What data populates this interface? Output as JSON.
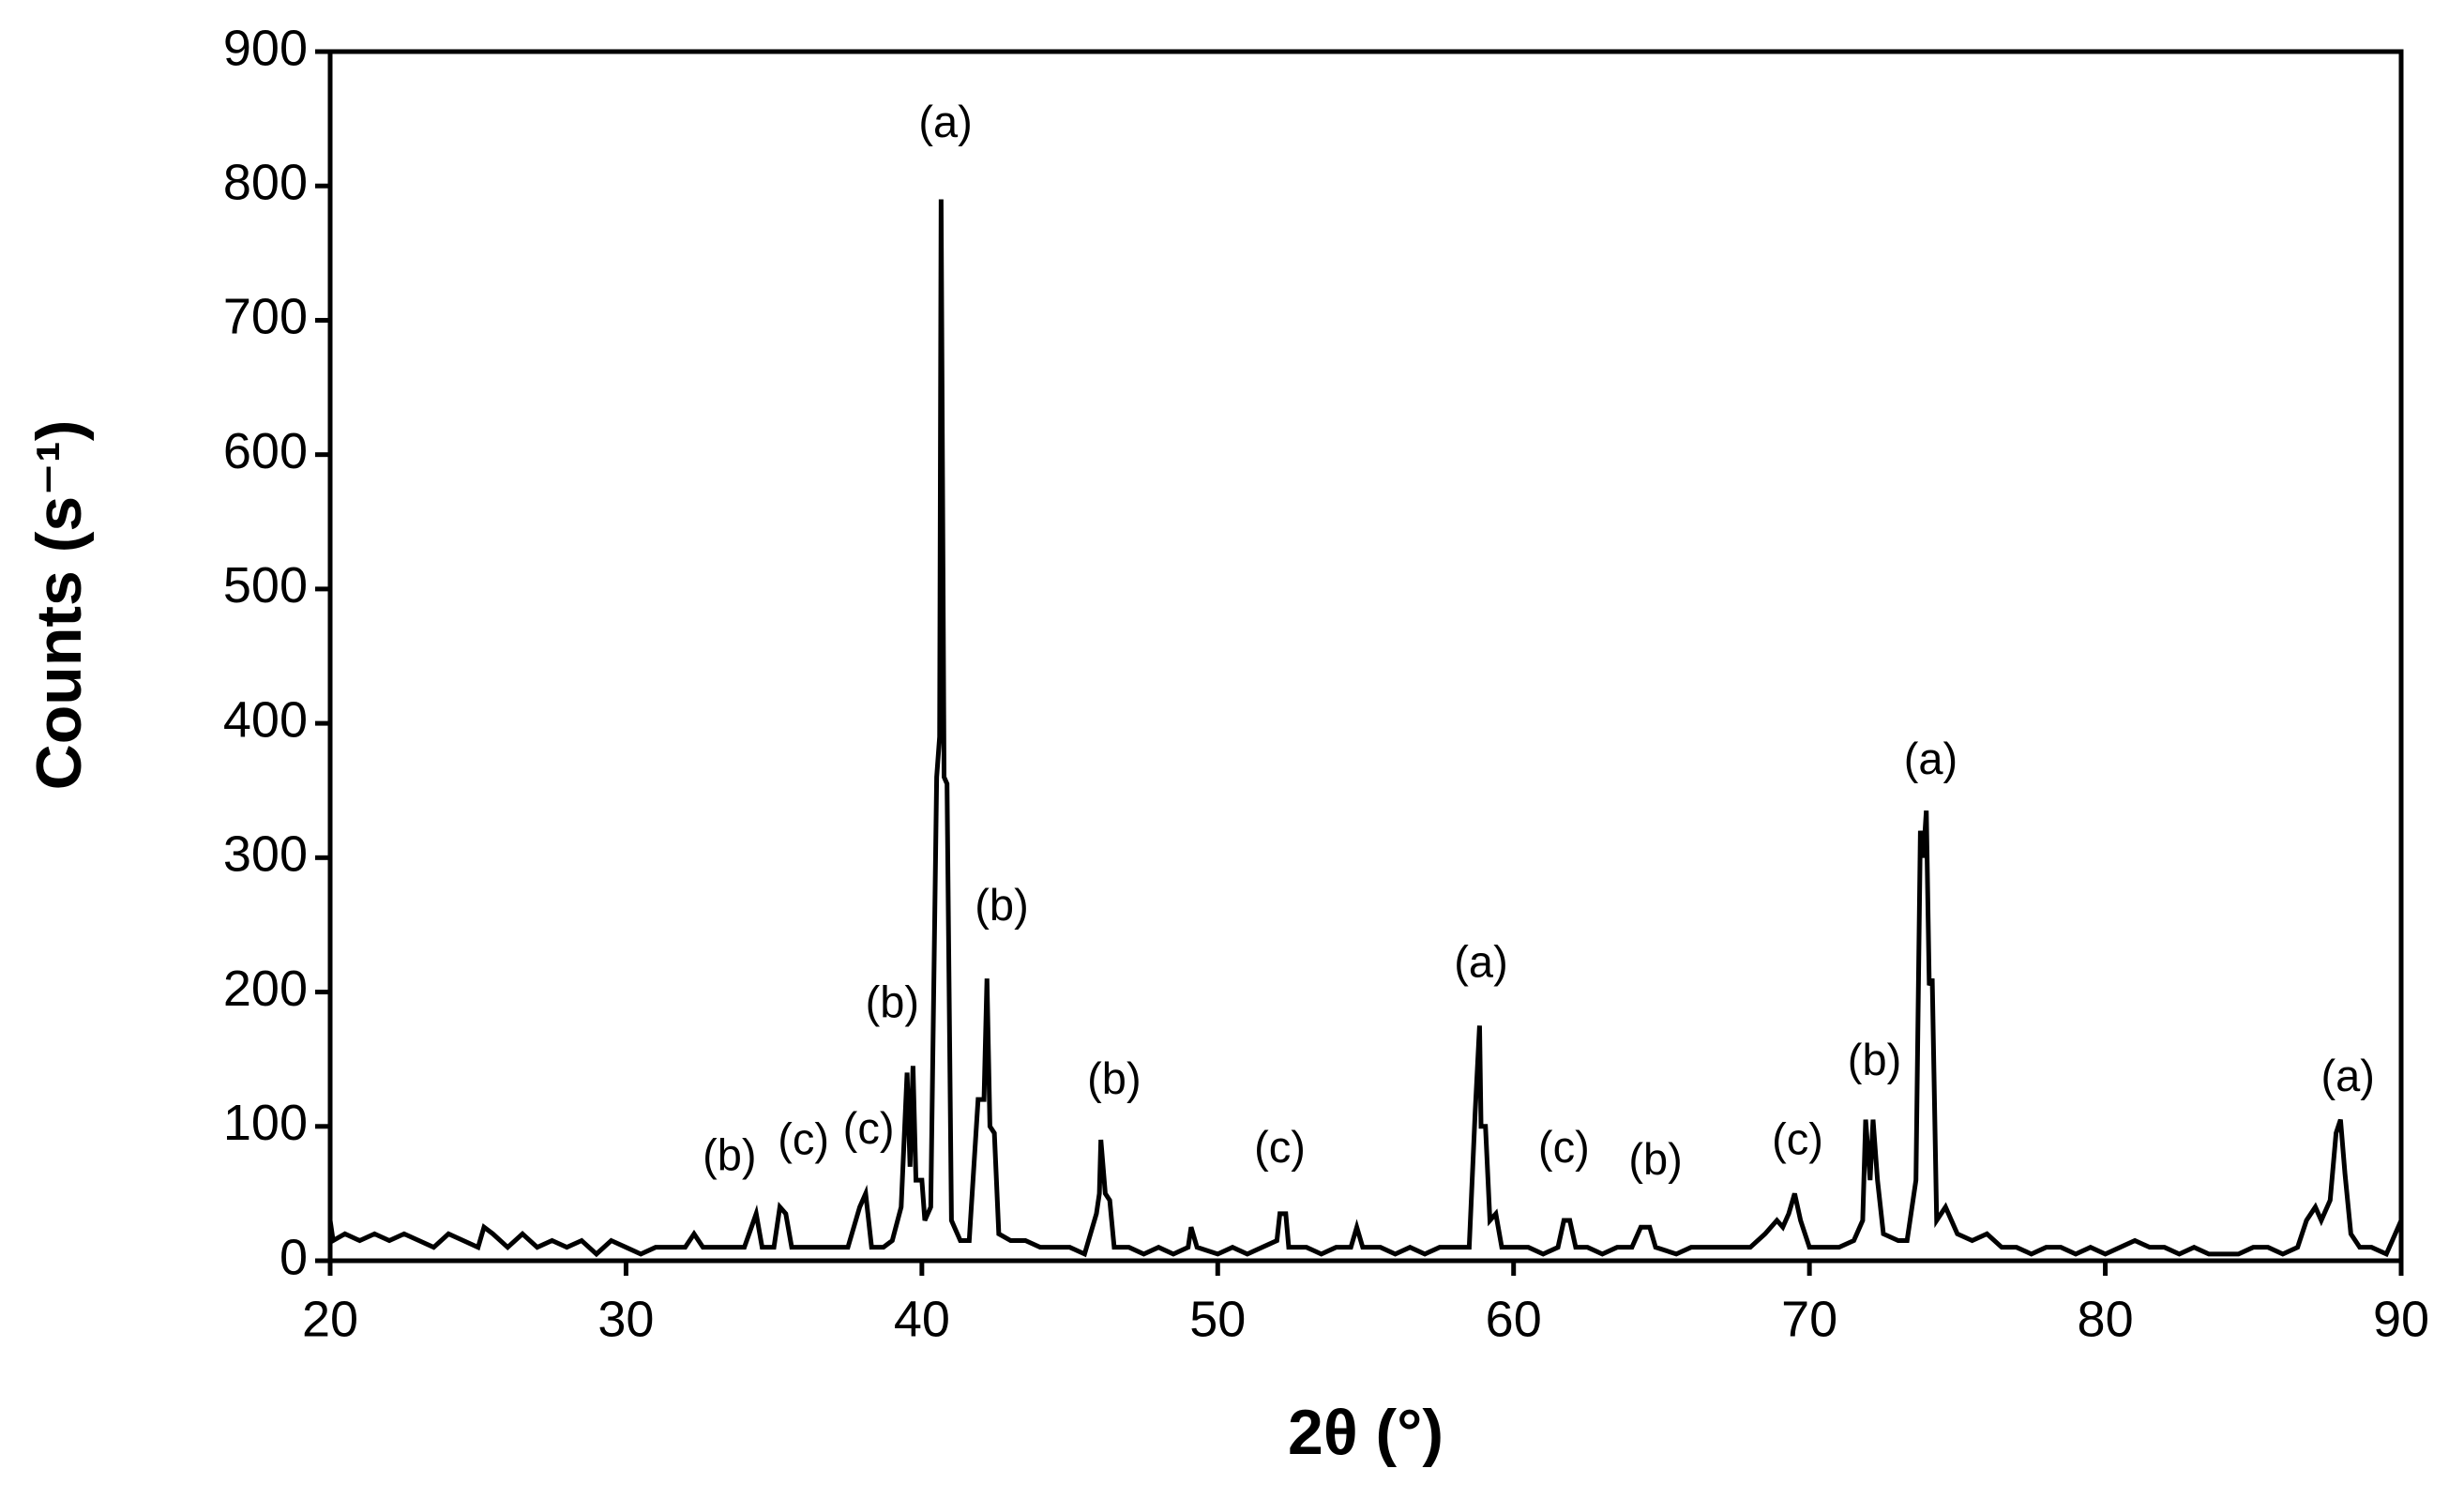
{
  "chart_data": {
    "type": "line",
    "xlabel": "2θ (°)",
    "ylabel": "Counts (s⁻¹)",
    "color": "#000000",
    "xlim": [
      20,
      90
    ],
    "ylim": [
      0,
      900
    ],
    "xticks": [
      20,
      30,
      40,
      50,
      60,
      70,
      80,
      90
    ],
    "yticks": [
      0,
      100,
      200,
      300,
      400,
      500,
      600,
      700,
      800,
      900
    ],
    "grid": false,
    "x": [
      20,
      20.1,
      20.5,
      21,
      21.5,
      22,
      22.5,
      23,
      23.5,
      24,
      24.5,
      25,
      25.2,
      25.5,
      26,
      26.5,
      27,
      27.5,
      28,
      28.5,
      29,
      29.5,
      30,
      30.5,
      31,
      31.5,
      32,
      32.3,
      32.6,
      33,
      33.5,
      34,
      34.4,
      34.6,
      35,
      35.2,
      35.4,
      35.6,
      36,
      36.5,
      37,
      37.5,
      37.9,
      38.1,
      38.3,
      38.7,
      39,
      39.3,
      39.5,
      39.6,
      39.7,
      39.8,
      40,
      40.1,
      40.3,
      40.5,
      40.6,
      40.65,
      40.75,
      40.85,
      41,
      41.3,
      41.6,
      41.9,
      42.1,
      42.2,
      42.3,
      42.45,
      42.6,
      43,
      43.5,
      44,
      44.5,
      45,
      45.5,
      45.9,
      46,
      46.05,
      46.2,
      46.35,
      46.5,
      47,
      47.5,
      48,
      48.5,
      49,
      49.1,
      49.3,
      50,
      50.5,
      51,
      51.5,
      52,
      52.1,
      52.3,
      52.4,
      53,
      53.5,
      54,
      54.5,
      54.7,
      54.9,
      55.5,
      56,
      56.5,
      57,
      57.5,
      58,
      58.5,
      58.7,
      58.85,
      58.9,
      59.05,
      59.2,
      59.4,
      59.6,
      60,
      60.5,
      61,
      61.5,
      61.7,
      61.9,
      62.1,
      62.5,
      63,
      63.5,
      64,
      64.3,
      64.6,
      64.8,
      65.5,
      66,
      66.5,
      67,
      67.5,
      68,
      68.5,
      68.9,
      69.1,
      69.3,
      69.5,
      69.7,
      70,
      70.5,
      71,
      71.5,
      71.8,
      71.9,
      72.05,
      72.15,
      72.3,
      72.5,
      73,
      73.3,
      73.6,
      73.75,
      73.85,
      73.95,
      74.05,
      74.15,
      74.3,
      74.6,
      75,
      75.5,
      76,
      76.5,
      77,
      77.5,
      78,
      78.5,
      79,
      79.5,
      80,
      80.5,
      81,
      81.5,
      82,
      82.5,
      83,
      83.5,
      84,
      84.5,
      85,
      85.5,
      86,
      86.5,
      86.8,
      87.1,
      87.3,
      87.6,
      87.8,
      87.95,
      88.1,
      88.3,
      88.6,
      89,
      89.5,
      89.8,
      90
    ],
    "values": [
      30,
      15,
      20,
      15,
      20,
      15,
      20,
      15,
      10,
      20,
      15,
      10,
      25,
      20,
      10,
      20,
      10,
      15,
      10,
      15,
      5,
      15,
      10,
      5,
      10,
      10,
      10,
      20,
      10,
      10,
      10,
      10,
      35,
      10,
      10,
      40,
      35,
      10,
      10,
      10,
      10,
      10,
      40,
      50,
      10,
      10,
      15,
      40,
      140,
      70,
      145,
      60,
      60,
      30,
      40,
      360,
      390,
      790,
      360,
      355,
      30,
      15,
      15,
      120,
      120,
      210,
      100,
      95,
      20,
      15,
      15,
      10,
      10,
      10,
      5,
      35,
      50,
      90,
      50,
      45,
      10,
      10,
      5,
      10,
      5,
      10,
      25,
      10,
      5,
      10,
      5,
      10,
      15,
      35,
      35,
      10,
      10,
      5,
      10,
      10,
      25,
      10,
      10,
      5,
      10,
      5,
      10,
      10,
      10,
      110,
      175,
      100,
      100,
      30,
      35,
      10,
      10,
      10,
      5,
      10,
      30,
      30,
      10,
      10,
      5,
      10,
      10,
      25,
      25,
      10,
      5,
      10,
      10,
      10,
      10,
      10,
      20,
      30,
      25,
      35,
      50,
      30,
      10,
      10,
      10,
      15,
      30,
      105,
      60,
      105,
      60,
      20,
      15,
      15,
      60,
      320,
      300,
      335,
      205,
      210,
      30,
      40,
      20,
      15,
      20,
      10,
      10,
      5,
      10,
      10,
      5,
      10,
      5,
      10,
      15,
      10,
      10,
      5,
      10,
      5,
      5,
      5,
      10,
      10,
      5,
      10,
      30,
      40,
      30,
      45,
      95,
      105,
      65,
      20,
      10,
      10,
      5,
      20,
      30
    ],
    "annotations": [
      {
        "text": "(b)",
        "x": 33.5,
        "y": 76
      },
      {
        "text": "(c)",
        "x": 36.0,
        "y": 88
      },
      {
        "text": "(c)",
        "x": 38.2,
        "y": 96
      },
      {
        "text": "(b)",
        "x": 39.0,
        "y": 190
      },
      {
        "text": "(a)",
        "x": 40.8,
        "y": 845
      },
      {
        "text": "(b)",
        "x": 42.7,
        "y": 262
      },
      {
        "text": "(b)",
        "x": 46.5,
        "y": 133
      },
      {
        "text": "(c)",
        "x": 52.1,
        "y": 82
      },
      {
        "text": "(a)",
        "x": 58.9,
        "y": 220
      },
      {
        "text": "(c)",
        "x": 61.7,
        "y": 82
      },
      {
        "text": "(b)",
        "x": 64.8,
        "y": 73
      },
      {
        "text": "(c)",
        "x": 69.6,
        "y": 88
      },
      {
        "text": "(b)",
        "x": 72.2,
        "y": 147
      },
      {
        "text": "(a)",
        "x": 74.1,
        "y": 371
      },
      {
        "text": "(a)",
        "x": 88.2,
        "y": 135
      }
    ]
  }
}
